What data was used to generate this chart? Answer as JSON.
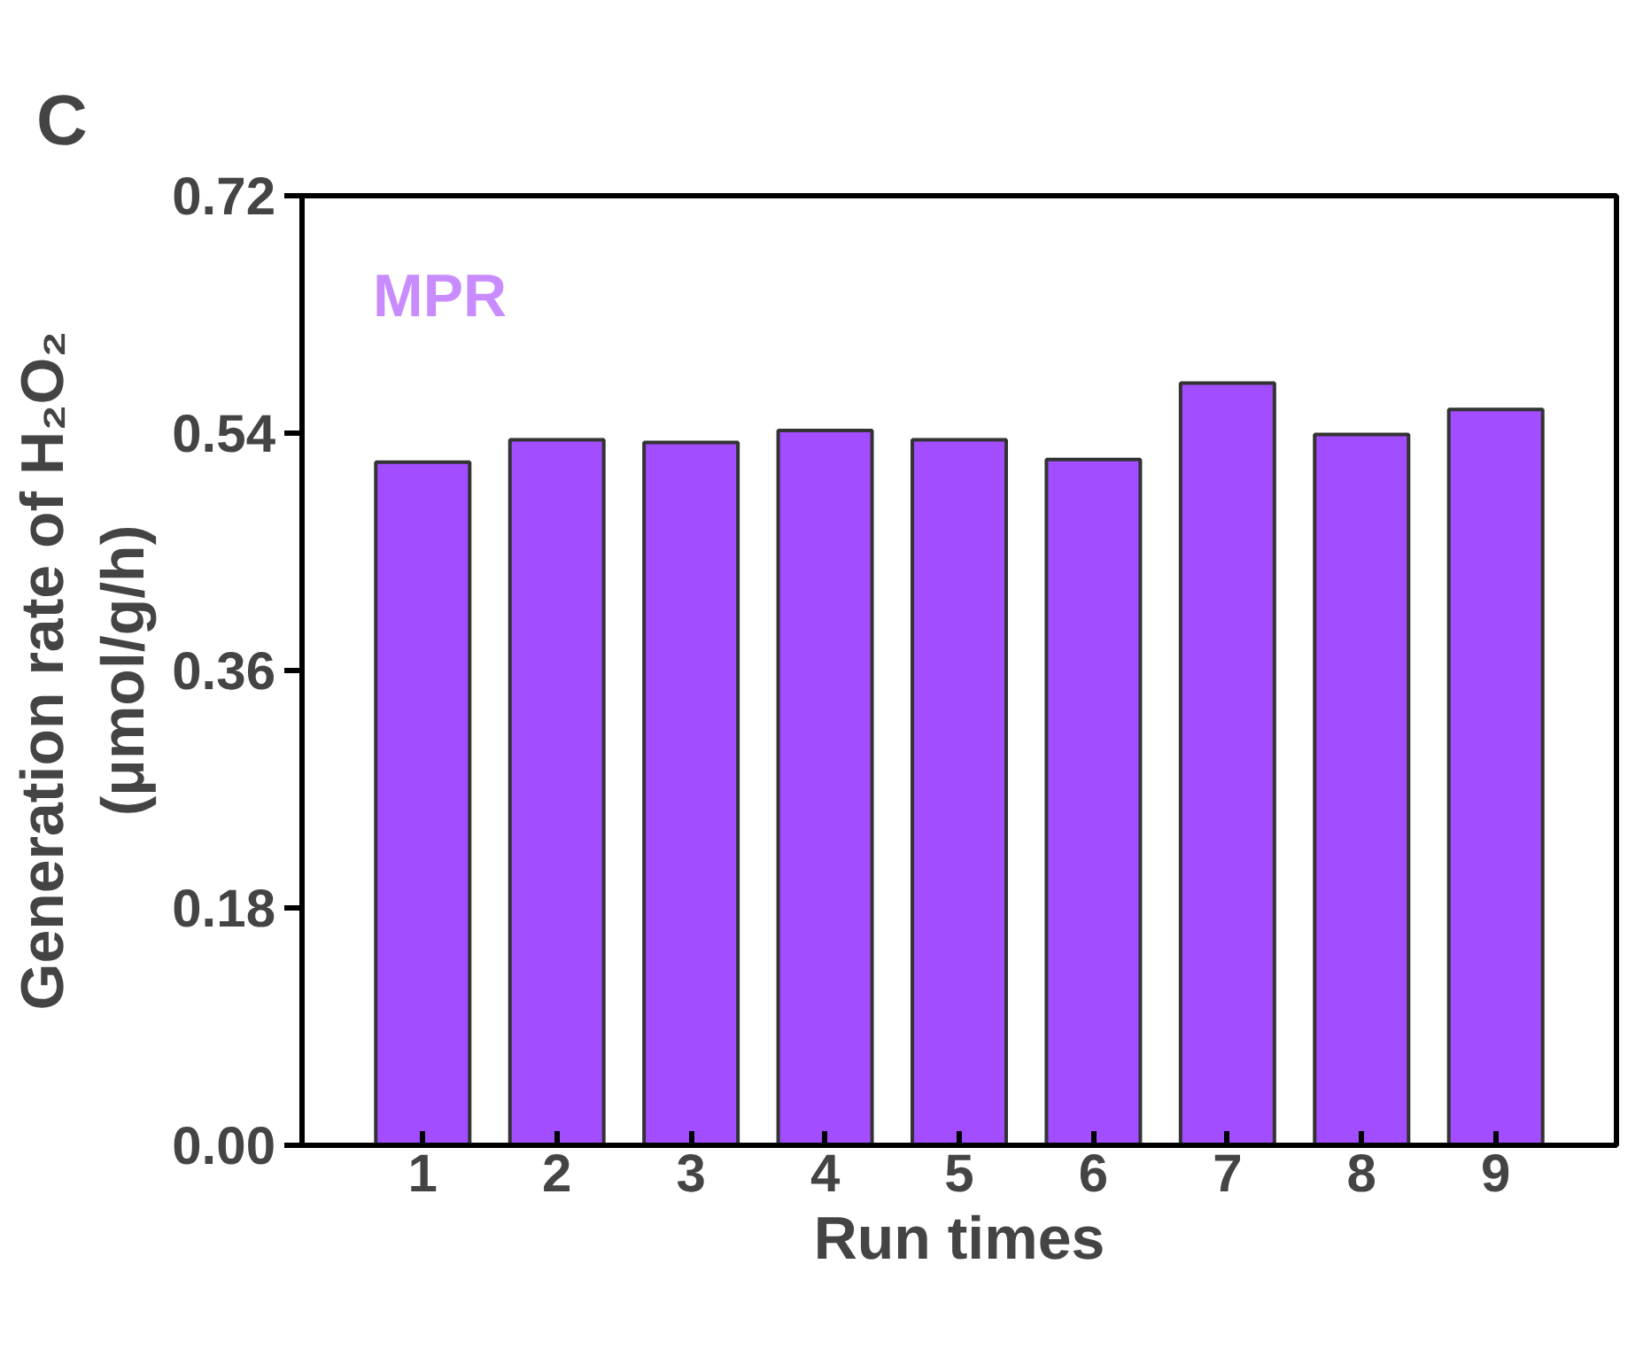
{
  "chart_data": {
    "type": "bar",
    "categories": [
      "1",
      "2",
      "3",
      "4",
      "5",
      "6",
      "7",
      "8",
      "9"
    ],
    "values": [
      0.518,
      0.535,
      0.533,
      0.542,
      0.535,
      0.52,
      0.578,
      0.539,
      0.558
    ],
    "color": "#a24dff",
    "xlabel": "Run times",
    "ylabel": "Generation rate of H₂O₂\n(μmol/g/h)",
    "ylim": [
      0,
      0.72
    ],
    "yticks": [
      {
        "value": 0,
        "label": "0.00"
      },
      {
        "value": 0.18,
        "label": "0.18"
      },
      {
        "value": 0.36,
        "label": "0.36"
      },
      {
        "value": 0.54,
        "label": "0.54"
      },
      {
        "value": 0.72,
        "label": "0.72"
      }
    ],
    "annotations": [
      "C",
      "MPR"
    ]
  }
}
